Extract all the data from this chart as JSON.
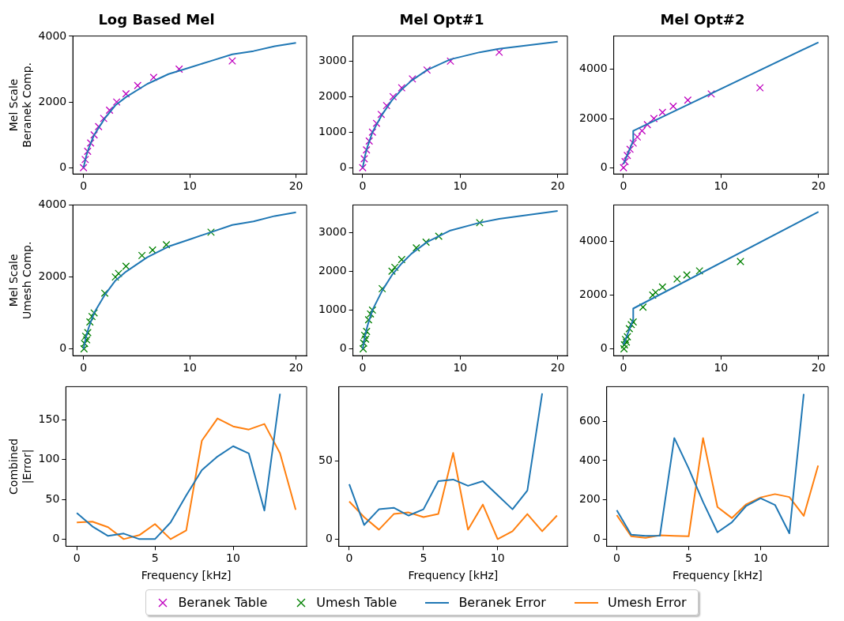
{
  "chart_data": [
    {
      "type": "scatter",
      "title": "Log Based Mel",
      "ylabel": "Mel Scale\nBeranek Comp.",
      "xlim": [
        -1,
        21
      ],
      "ylim": [
        -191,
        4008
      ],
      "xticks": [
        0,
        10,
        20
      ],
      "yticks": [
        0,
        2000,
        4000
      ],
      "legend": "bottom",
      "series": [
        {
          "type": "line",
          "color": "#1f77b4",
          "marker": "none",
          "x": [
            0,
            0.25,
            0.5,
            1,
            2,
            3,
            4,
            6,
            8,
            10,
            12,
            14,
            16,
            18,
            20
          ],
          "values": [
            0,
            350,
            600,
            1000,
            1500,
            1900,
            2150,
            2550,
            2850,
            3050,
            3250,
            3450,
            3550,
            3700,
            3800
          ]
        },
        {
          "name": "Beranek Table",
          "color": "#bf00bf",
          "marker": "cross",
          "x": [
            0,
            0.16,
            0.39,
            0.67,
            1.0,
            1.42,
            1.9,
            2.45,
            3.12,
            4.0,
            5.1,
            6.6,
            9.0,
            14.0
          ],
          "values": [
            0,
            250,
            500,
            750,
            1000,
            1250,
            1500,
            1750,
            2000,
            2250,
            2500,
            2750,
            3000,
            3250
          ]
        }
      ]
    },
    {
      "type": "scatter",
      "title": "Mel Opt#1",
      "xlim": [
        -1,
        21
      ],
      "ylim": [
        -176,
        3707
      ],
      "xticks": [
        0,
        10,
        20
      ],
      "yticks": [
        0,
        1000,
        2000,
        3000
      ],
      "legend": "bottom",
      "series": [
        {
          "type": "line",
          "color": "#1f77b4",
          "marker": "none",
          "x": [
            0,
            0.25,
            0.5,
            1,
            1.5,
            2,
            3,
            4,
            5,
            6.6,
            9,
            12,
            14,
            17,
            20
          ],
          "values": [
            0,
            350,
            600,
            1000,
            1250,
            1500,
            1900,
            2200,
            2450,
            2750,
            3050,
            3250,
            3350,
            3450,
            3550
          ]
        },
        {
          "name": "Beranek Table",
          "color": "#bf00bf",
          "marker": "cross",
          "x": [
            0,
            0.16,
            0.39,
            0.67,
            1.0,
            1.42,
            1.9,
            2.45,
            3.12,
            4.0,
            5.1,
            6.6,
            9.0,
            14.0
          ],
          "values": [
            0,
            250,
            500,
            750,
            1000,
            1250,
            1500,
            1750,
            2000,
            2250,
            2500,
            2750,
            3000,
            3250
          ]
        }
      ]
    },
    {
      "type": "scatter",
      "title": "Mel Opt#2",
      "xlim": [
        -1,
        21
      ],
      "ylim": [
        -255,
        5355
      ],
      "xticks": [
        0,
        10,
        20
      ],
      "yticks": [
        0,
        2000,
        4000
      ],
      "legend": "bottom",
      "series": [
        {
          "type": "line",
          "color": "#1f77b4",
          "marker": "none",
          "x": [
            0,
            1,
            1,
            20
          ],
          "values": [
            150,
            1100,
            1500,
            5100
          ]
        },
        {
          "name": "Beranek Table",
          "color": "#bf00bf",
          "marker": "cross",
          "x": [
            0,
            0.16,
            0.39,
            0.67,
            1.0,
            1.42,
            1.9,
            2.45,
            3.12,
            4.0,
            5.1,
            6.6,
            9.0,
            14.0
          ],
          "values": [
            0,
            250,
            500,
            750,
            1000,
            1250,
            1500,
            1750,
            2000,
            2250,
            2500,
            2750,
            3000,
            3250
          ]
        }
      ]
    },
    {
      "type": "scatter",
      "ylabel": "Mel Scale\nUmesh Comp.",
      "xlim": [
        -1,
        21
      ],
      "ylim": [
        -191,
        4008
      ],
      "xticks": [
        0,
        10,
        20
      ],
      "yticks": [
        0,
        2000,
        4000
      ],
      "legend": "bottom",
      "series": [
        {
          "type": "line",
          "color": "#1f77b4",
          "marker": "none",
          "x": [
            0,
            0.25,
            0.5,
            1,
            2,
            3,
            4,
            6,
            8,
            10,
            12,
            14,
            16,
            18,
            20
          ],
          "values": [
            0,
            350,
            600,
            1000,
            1500,
            1900,
            2150,
            2550,
            2850,
            3050,
            3250,
            3450,
            3550,
            3700,
            3800
          ]
        },
        {
          "name": "Umesh Table",
          "color": "#008000",
          "marker": "cross",
          "x": [
            0.05,
            0.1,
            0.2,
            0.3,
            0.4,
            0.6,
            0.8,
            1.0,
            2.0,
            3.0,
            3.3,
            4.0,
            5.5,
            6.5,
            7.8,
            12.0
          ],
          "values": [
            0,
            150,
            350,
            250,
            450,
            750,
            900,
            1000,
            1550,
            2000,
            2100,
            2300,
            2600,
            2750,
            2900,
            3250
          ]
        }
      ]
    },
    {
      "type": "scatter",
      "xlim": [
        -1,
        21
      ],
      "ylim": [
        -176,
        3707
      ],
      "xticks": [
        0,
        10,
        20
      ],
      "yticks": [
        0,
        1000,
        2000,
        3000
      ],
      "legend": "bottom",
      "series": [
        {
          "type": "line",
          "color": "#1f77b4",
          "marker": "none",
          "x": [
            0,
            0.25,
            0.5,
            1,
            1.5,
            2,
            3,
            4,
            5,
            6.6,
            9,
            12,
            14,
            17,
            20
          ],
          "values": [
            0,
            350,
            600,
            1000,
            1250,
            1500,
            1900,
            2200,
            2450,
            2750,
            3050,
            3250,
            3350,
            3450,
            3550
          ]
        },
        {
          "name": "Umesh Table",
          "color": "#008000",
          "marker": "cross",
          "x": [
            0.05,
            0.1,
            0.2,
            0.3,
            0.4,
            0.6,
            0.8,
            1.0,
            2.0,
            3.0,
            3.3,
            4.0,
            5.5,
            6.5,
            7.8,
            12.0
          ],
          "values": [
            0,
            150,
            350,
            250,
            450,
            750,
            900,
            1000,
            1550,
            2000,
            2100,
            2300,
            2600,
            2750,
            2900,
            3250
          ]
        }
      ]
    },
    {
      "type": "scatter",
      "xlim": [
        -1,
        21
      ],
      "ylim": [
        -255,
        5355
      ],
      "xticks": [
        0,
        10,
        20
      ],
      "yticks": [
        0,
        2000,
        4000
      ],
      "legend": "bottom",
      "series": [
        {
          "type": "line",
          "color": "#1f77b4",
          "marker": "none",
          "x": [
            0,
            1,
            1,
            20
          ],
          "values": [
            150,
            1100,
            1500,
            5100
          ]
        },
        {
          "name": "Umesh Table",
          "color": "#008000",
          "marker": "cross",
          "x": [
            0.05,
            0.1,
            0.2,
            0.3,
            0.4,
            0.6,
            0.8,
            1.0,
            2.0,
            3.0,
            3.3,
            4.0,
            5.5,
            6.5,
            7.8,
            12.0
          ],
          "values": [
            0,
            150,
            350,
            250,
            450,
            750,
            900,
            1000,
            1550,
            2000,
            2100,
            2300,
            2600,
            2750,
            2900,
            3250
          ]
        }
      ]
    },
    {
      "type": "line",
      "xlabel": "Frequency [kHz]",
      "ylabel": "Combined\n|Error|",
      "xlim": [
        -0.7,
        14.7
      ],
      "ylim": [
        -9,
        192
      ],
      "xticks": [
        0,
        5,
        10
      ],
      "yticks": [
        0,
        50,
        100,
        150
      ],
      "legend": "bottom",
      "series": [
        {
          "name": "Beranek Error",
          "color": "#1f77b4",
          "marker": "none",
          "x": [
            0,
            1,
            2,
            3,
            4,
            5,
            6,
            7,
            8,
            9,
            10,
            11,
            12,
            13
          ],
          "values": [
            33,
            16,
            4,
            7,
            0,
            0,
            21,
            55,
            87,
            104,
            117,
            108,
            36,
            183
          ]
        },
        {
          "name": "Umesh Error",
          "color": "#ff7f0e",
          "marker": "none",
          "x": [
            0,
            1,
            2,
            3,
            4,
            5,
            6,
            7,
            8,
            9,
            10,
            11,
            12,
            13,
            14
          ],
          "values": [
            21,
            22,
            15,
            0,
            5,
            19,
            0,
            11,
            124,
            152,
            142,
            138,
            145,
            108,
            37
          ]
        }
      ]
    },
    {
      "type": "line",
      "xlabel": "Frequency [kHz]",
      "xlim": [
        -0.7,
        14.7
      ],
      "ylim": [
        -4.6,
        97.3
      ],
      "xticks": [
        0,
        5,
        10
      ],
      "yticks": [
        0,
        50
      ],
      "legend": "bottom",
      "series": [
        {
          "name": "Beranek Error",
          "color": "#1f77b4",
          "marker": "none",
          "x": [
            0,
            1,
            2,
            3,
            4,
            5,
            6,
            7,
            8,
            9,
            10,
            11,
            12,
            13
          ],
          "values": [
            35,
            9,
            19,
            20,
            15,
            19,
            37,
            38,
            34,
            37,
            28,
            19,
            31,
            93
          ]
        },
        {
          "name": "Umesh Error",
          "color": "#ff7f0e",
          "marker": "none",
          "x": [
            0,
            1,
            2,
            3,
            4,
            5,
            6,
            7,
            8,
            9,
            10,
            11,
            12,
            13,
            14
          ],
          "values": [
            24,
            14,
            6,
            16,
            17,
            14,
            16,
            55,
            6,
            22,
            0,
            5,
            16,
            5,
            15
          ]
        }
      ]
    },
    {
      "type": "line",
      "xlabel": "Frequency [kHz]",
      "xlim": [
        -0.7,
        14.7
      ],
      "ylim": [
        -37,
        777
      ],
      "xticks": [
        0,
        5,
        10
      ],
      "yticks": [
        0,
        200,
        400,
        600
      ],
      "legend": "bottom",
      "series": [
        {
          "name": "Beranek Error",
          "color": "#1f77b4",
          "marker": "none",
          "x": [
            0,
            1,
            2,
            3,
            4,
            5,
            6,
            7,
            8,
            9,
            10,
            11,
            12,
            13
          ],
          "values": [
            147,
            22,
            16,
            17,
            515,
            360,
            189,
            34,
            85,
            169,
            208,
            174,
            29,
            740
          ]
        },
        {
          "name": "Umesh Error",
          "color": "#ff7f0e",
          "marker": "none",
          "x": [
            0,
            1,
            2,
            3,
            4,
            5,
            6,
            7,
            8,
            9,
            10,
            11,
            12,
            13,
            14
          ],
          "values": [
            122,
            14,
            6,
            19,
            16,
            14,
            515,
            163,
            107,
            177,
            212,
            229,
            214,
            118,
            375
          ]
        }
      ]
    }
  ]
}
